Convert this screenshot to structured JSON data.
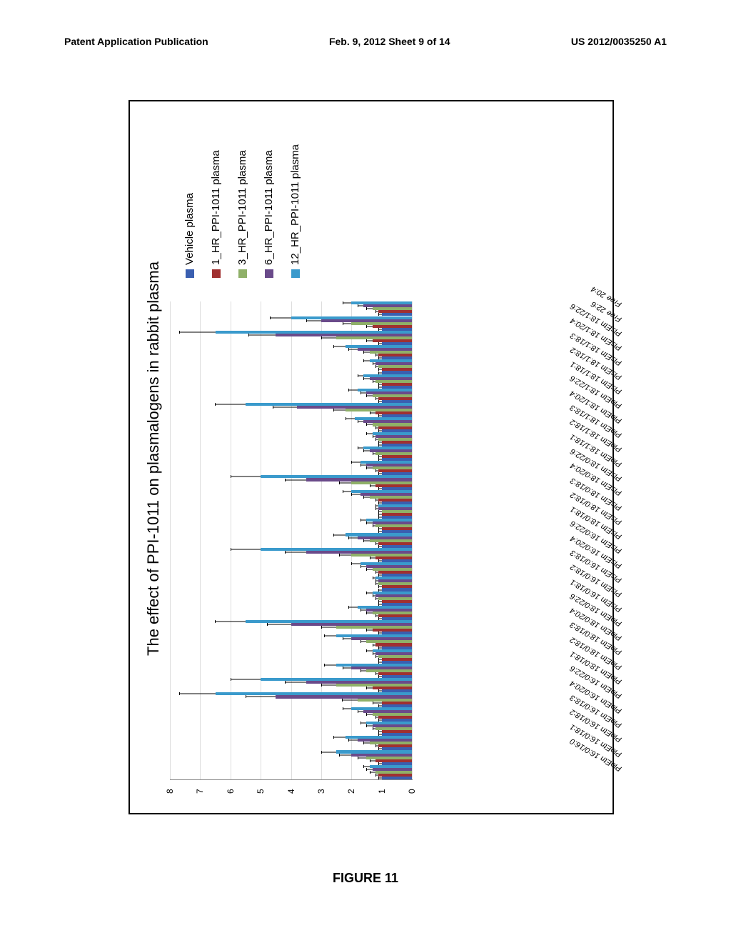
{
  "header": {
    "left": "Patent Application Publication",
    "center": "Feb. 9, 2012  Sheet 9 of 14",
    "right": "US 2012/0035250 A1"
  },
  "figure_label": "FIGURE 11",
  "chart": {
    "type": "bar",
    "title": "The effect of PPI-1011 on plasmalogens in rabbit plasma",
    "ymax": 8,
    "yticks": [
      0,
      1,
      2,
      3,
      4,
      5,
      6,
      7,
      8
    ],
    "grid_color": "#dddddd",
    "background_color": "#ffffff",
    "title_fontsize": 22,
    "label_fontsize": 11,
    "series_colors": [
      "#3a5fb0",
      "#a03030",
      "#8fb068",
      "#6a4a8a",
      "#3a9acc"
    ],
    "categories": [
      "PloEtn 16:0/16:0",
      "PloEtn 16:0/18:1",
      "PloEtn 16:0/18:2",
      "PloEtn 16:0/18:3",
      "PloEtn 16:0/20:4",
      "PloEtn 16:0/22:6",
      "PloEtn 18:0/18:1",
      "PloEtn 18:0/18:2",
      "PloEtn 18:0/18:3",
      "PloEtn 18:0/20:4",
      "PloEtn 18:0/22:6",
      "PlsEtn 16:0/18:1",
      "PlsEtn 16:0/18:2",
      "PlsEtn 16:0/18:3",
      "PlsEtn 16:0/20:4",
      "PlsEtn 16:0/22:6",
      "PlsEtn 18:0/18:1",
      "PlsEtn 18:0/18:2",
      "PlsEtn 18:0/18:3",
      "PlsEtn 18:0/20:4",
      "PlsEtn 18:0/22:6",
      "PloEtn 18:1/18:1",
      "PloEtn 18:1/18:2",
      "PloEtn 18:1/18:3",
      "PloEtn 18:1/20:4",
      "PloEtn 18:1/22:6",
      "PlsEtn 18:1/18:1",
      "PlsEtn 18:1/18:2",
      "PlsEtn 18:1/18:3",
      "PlsEtn 18:1/20:4",
      "PlsEtn 18:1/22:6",
      "Free 22:6",
      "Free 20:4"
    ],
    "legend_items": [
      "Vehicle plasma",
      "1_HR_PPI-1011 plasma",
      "3_HR_PPI-1011 plasma",
      "6_HR_PPI-1011 plasma",
      "12_HR_PPI-1011 plasma"
    ],
    "data": [
      [
        1.0,
        1.1,
        1.2,
        1.3,
        1.4
      ],
      [
        1.0,
        1.2,
        1.5,
        2.0,
        2.5
      ],
      [
        1.0,
        1.1,
        1.4,
        1.8,
        2.2
      ],
      [
        1.0,
        1.0,
        1.2,
        1.3,
        1.5
      ],
      [
        1.0,
        1.1,
        1.3,
        1.6,
        2.0
      ],
      [
        1.0,
        1.0,
        1.8,
        4.5,
        6.5
      ],
      [
        1.0,
        1.3,
        2.5,
        3.5,
        5.0
      ],
      [
        1.0,
        1.1,
        1.5,
        2.0,
        2.5
      ],
      [
        1.0,
        1.0,
        1.1,
        1.2,
        1.3
      ],
      [
        1.0,
        1.2,
        1.5,
        2.0,
        2.5
      ],
      [
        1.0,
        1.3,
        2.5,
        4.0,
        5.5
      ],
      [
        1.0,
        1.1,
        1.3,
        1.5,
        1.8
      ],
      [
        1.0,
        1.0,
        1.1,
        1.2,
        1.3
      ],
      [
        1.0,
        1.0,
        1.1,
        1.1,
        1.2
      ],
      [
        1.0,
        1.1,
        1.3,
        1.5,
        1.7
      ],
      [
        1.0,
        1.2,
        2.0,
        3.5,
        5.0
      ],
      [
        1.0,
        1.1,
        1.4,
        1.8,
        2.2
      ],
      [
        1.0,
        1.0,
        1.2,
        1.3,
        1.5
      ],
      [
        1.0,
        1.0,
        1.0,
        1.1,
        1.1
      ],
      [
        1.0,
        1.1,
        1.4,
        1.7,
        2.0
      ],
      [
        1.0,
        1.2,
        2.0,
        3.5,
        5.0
      ],
      [
        1.0,
        1.1,
        1.3,
        1.5,
        1.7
      ],
      [
        1.0,
        1.0,
        1.2,
        1.4,
        1.6
      ],
      [
        1.0,
        1.0,
        1.1,
        1.2,
        1.3
      ],
      [
        1.0,
        1.1,
        1.3,
        1.6,
        1.9
      ],
      [
        1.0,
        1.2,
        2.2,
        3.8,
        5.5
      ],
      [
        1.0,
        1.1,
        1.3,
        1.5,
        1.8
      ],
      [
        1.0,
        1.0,
        1.2,
        1.4,
        1.6
      ],
      [
        1.0,
        1.0,
        1.1,
        1.2,
        1.4
      ],
      [
        1.0,
        1.1,
        1.4,
        1.8,
        2.2
      ],
      [
        1.0,
        1.3,
        2.5,
        4.5,
        6.5
      ],
      [
        1.0,
        1.3,
        2.0,
        3.0,
        4.0
      ],
      [
        1.0,
        1.1,
        1.3,
        1.6,
        2.0
      ]
    ],
    "errors": [
      [
        0.1,
        0.1,
        0.2,
        0.2,
        0.2
      ],
      [
        0.1,
        0.2,
        0.3,
        0.4,
        0.5
      ],
      [
        0.1,
        0.1,
        0.2,
        0.3,
        0.4
      ],
      [
        0.1,
        0.1,
        0.1,
        0.2,
        0.2
      ],
      [
        0.1,
        0.1,
        0.2,
        0.2,
        0.3
      ],
      [
        0.1,
        0.3,
        0.5,
        1.0,
        1.2
      ],
      [
        0.1,
        0.2,
        0.5,
        0.7,
        1.0
      ],
      [
        0.1,
        0.1,
        0.2,
        0.3,
        0.4
      ],
      [
        0.1,
        0.1,
        0.1,
        0.1,
        0.2
      ],
      [
        0.1,
        0.1,
        0.2,
        0.3,
        0.4
      ],
      [
        0.1,
        0.2,
        0.5,
        0.8,
        1.0
      ],
      [
        0.1,
        0.1,
        0.2,
        0.2,
        0.3
      ],
      [
        0.1,
        0.1,
        0.1,
        0.1,
        0.2
      ],
      [
        0.1,
        0.1,
        0.1,
        0.1,
        0.1
      ],
      [
        0.1,
        0.1,
        0.2,
        0.2,
        0.3
      ],
      [
        0.1,
        0.2,
        0.4,
        0.7,
        1.0
      ],
      [
        0.1,
        0.1,
        0.2,
        0.3,
        0.4
      ],
      [
        0.1,
        0.1,
        0.1,
        0.2,
        0.2
      ],
      [
        0.1,
        0.1,
        0.1,
        0.1,
        0.1
      ],
      [
        0.1,
        0.1,
        0.2,
        0.3,
        0.3
      ],
      [
        0.1,
        0.2,
        0.4,
        0.7,
        1.0
      ],
      [
        0.1,
        0.1,
        0.2,
        0.2,
        0.3
      ],
      [
        0.1,
        0.1,
        0.1,
        0.2,
        0.2
      ],
      [
        0.1,
        0.1,
        0.1,
        0.1,
        0.2
      ],
      [
        0.1,
        0.1,
        0.2,
        0.2,
        0.3
      ],
      [
        0.1,
        0.2,
        0.4,
        0.8,
        1.0
      ],
      [
        0.1,
        0.1,
        0.2,
        0.2,
        0.3
      ],
      [
        0.1,
        0.1,
        0.1,
        0.2,
        0.2
      ],
      [
        0.1,
        0.1,
        0.1,
        0.1,
        0.2
      ],
      [
        0.1,
        0.1,
        0.2,
        0.3,
        0.4
      ],
      [
        0.1,
        0.2,
        0.5,
        0.9,
        1.2
      ],
      [
        0.1,
        0.2,
        0.3,
        0.5,
        0.7
      ],
      [
        0.1,
        0.1,
        0.2,
        0.2,
        0.3
      ]
    ]
  }
}
